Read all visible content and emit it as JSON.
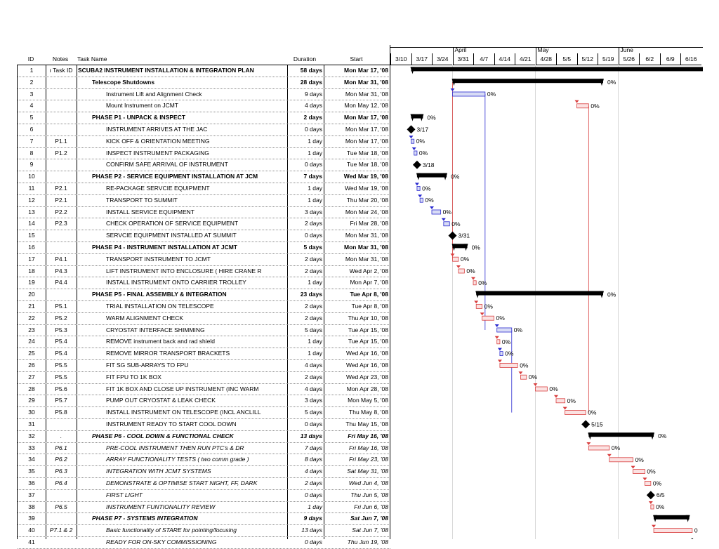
{
  "table": {
    "headers": {
      "id": "ID",
      "notes": "Notes",
      "name": "Task Name",
      "duration": "Duration",
      "start": "Start"
    },
    "rows": [
      {
        "id": "1",
        "notes": "ı Task ID",
        "name": "SCUBA2 INSTRUMENT INSTALLATION &  INTEGRATION PLAN",
        "duration": "58 days",
        "start": "Mon Mar 17, '08",
        "style": "summary",
        "indent": 0,
        "bar": {
          "type": "summary",
          "s": 7,
          "e": 106.9
        },
        "label": ""
      },
      {
        "id": "2",
        "notes": "",
        "name": "Telescope Shutdowns",
        "duration": "28 days",
        "start": "Mon Mar 31, '08",
        "style": "summary",
        "indent": 1,
        "bar": {
          "type": "summary",
          "s": 21,
          "e": 71.9
        },
        "label": "0%"
      },
      {
        "id": "3",
        "notes": "",
        "name": "Instrument Lift and Alignment Check",
        "duration": "9 days",
        "start": "Mon Mar 31, '08",
        "style": "normal",
        "indent": 2,
        "bar": {
          "type": "task",
          "s": 21,
          "e": 32,
          "color": "blue"
        },
        "label": "0%"
      },
      {
        "id": "4",
        "notes": "",
        "name": "Mount Instrument on JCMT",
        "duration": "4 days",
        "start": "Mon May 12, '08",
        "style": "normal",
        "indent": 2,
        "bar": {
          "type": "task",
          "s": 63,
          "e": 67,
          "color": "red"
        },
        "label": "0%"
      },
      {
        "id": "5",
        "notes": "",
        "name": "PHASE P1 - UNPACK & INSPECT",
        "duration": "2 days",
        "start": "Mon Mar 17, '08",
        "style": "summary",
        "indent": 1,
        "bar": {
          "type": "summary",
          "s": 7,
          "e": 11
        },
        "label": "0%"
      },
      {
        "id": "6",
        "notes": "",
        "name": "INSTRUMENT ARRIVES AT THE JAC",
        "duration": "0 days",
        "start": "Mon Mar 17, '08",
        "style": "normal",
        "indent": 2,
        "bar": {
          "type": "milestone",
          "s": 7
        },
        "label": "3/17"
      },
      {
        "id": "7",
        "notes": "P1.1",
        "name": "KICK OFF & ORIENTATION MEETING",
        "duration": "1 day",
        "start": "Mon Mar 17, '08",
        "style": "normal",
        "indent": 2,
        "bar": {
          "type": "task",
          "s": 7,
          "e": 8,
          "color": "blue"
        },
        "label": "0%"
      },
      {
        "id": "8",
        "notes": "P1.2",
        "name": " INSPECT INSTRUMENT PACKAGING",
        "duration": "1 day",
        "start": "Tue Mar 18, '08",
        "style": "normal",
        "indent": 2,
        "bar": {
          "type": "task",
          "s": 8,
          "e": 9,
          "color": "blue"
        },
        "label": "0%"
      },
      {
        "id": "9",
        "notes": "",
        "name": "CONFIRM SAFE ARRIVAL OF INSTRUMENT",
        "duration": "0 days",
        "start": "Tue Mar 18, '08",
        "style": "normal",
        "indent": 2,
        "bar": {
          "type": "milestone",
          "s": 9
        },
        "label": "3/18"
      },
      {
        "id": "10",
        "notes": "",
        "name": "PHASE P2 - SERVICE EQUIPMENT INSTALLATION AT JCM",
        "duration": "7 days",
        "start": "Wed Mar 19, '08",
        "style": "summary",
        "indent": 1,
        "bar": {
          "type": "summary",
          "s": 9,
          "e": 19
        },
        "label": "0%"
      },
      {
        "id": "11",
        "notes": "P2.1",
        "name": "RE-PACKAGE SERVCIE EQUIPMENT",
        "duration": "1 day",
        "start": "Wed Mar 19, '08",
        "style": "normal",
        "indent": 2,
        "bar": {
          "type": "task",
          "s": 9,
          "e": 10,
          "color": "blue"
        },
        "label": "0%"
      },
      {
        "id": "12",
        "notes": "P2.1",
        "name": "TRANSPORT TO SUMMIT",
        "duration": "1 day",
        "start": "Thu Mar 20, '08",
        "style": "normal",
        "indent": 2,
        "bar": {
          "type": "task",
          "s": 10,
          "e": 11,
          "color": "blue"
        },
        "label": "0%"
      },
      {
        "id": "13",
        "notes": "P2.2",
        "name": "INSTALL SERVICE EQUIPMENT",
        "duration": "3 days",
        "start": "Mon Mar 24, '08",
        "style": "normal",
        "indent": 2,
        "bar": {
          "type": "task",
          "s": 14,
          "e": 17,
          "color": "blue"
        },
        "label": "0%"
      },
      {
        "id": "14",
        "notes": "P2.3",
        "name": "CHECK OPERATION OF SERVICE EQUIPMENT",
        "duration": "2 days",
        "start": "Fri Mar 28, '08",
        "style": "normal",
        "indent": 2,
        "bar": {
          "type": "task",
          "s": 18,
          "e": 20,
          "color": "blue"
        },
        "label": "0%"
      },
      {
        "id": "15",
        "notes": "",
        "name": "SERVCIE EQUIPMENT INSTALLED AT SUMMIT",
        "duration": "0 days",
        "start": "Mon Mar 31, '08",
        "style": "normal",
        "indent": 2,
        "bar": {
          "type": "milestone",
          "s": 21
        },
        "label": "3/31"
      },
      {
        "id": "16",
        "notes": "",
        "name": "PHASE P4 - INSTRUMENT INSTALLATION AT JCMT",
        "duration": "5 days",
        "start": "Mon Mar 31, '08",
        "style": "summary",
        "indent": 1,
        "bar": {
          "type": "summary",
          "s": 21,
          "e": 26
        },
        "label": "0%"
      },
      {
        "id": "17",
        "notes": "P4.1",
        "name": "TRANSPORT INSTRUMENT TO JCMT",
        "duration": "2 days",
        "start": "Mon Mar 31, '08",
        "style": "normal",
        "indent": 2,
        "bar": {
          "type": "task",
          "s": 21,
          "e": 23,
          "color": "red"
        },
        "label": "0%"
      },
      {
        "id": "18",
        "notes": "P4.3",
        "name": "LIFT INSTRUMENT INTO ENCLOSURE ( HIRE CRANE R",
        "duration": "2 days",
        "start": "Wed Apr 2, '08",
        "style": "normal",
        "indent": 2,
        "bar": {
          "type": "task",
          "s": 23,
          "e": 25,
          "color": "red"
        },
        "label": "0%"
      },
      {
        "id": "19",
        "notes": "P4.4",
        "name": "INSTALL INSTRUMENT ONTO CARRIER TROLLEY",
        "duration": "1 day",
        "start": "Mon Apr 7, '08",
        "style": "normal",
        "indent": 2,
        "bar": {
          "type": "task",
          "s": 28,
          "e": 29,
          "color": "red"
        },
        "label": "0%"
      },
      {
        "id": "20",
        "notes": "",
        "name": "PHASE P5 - FINAL ASSEMBLY & INTEGRATION",
        "duration": "23 days",
        "start": "Tue Apr 8, '08",
        "style": "summary",
        "indent": 1,
        "bar": {
          "type": "summary",
          "s": 29,
          "e": 71.9
        },
        "label": "0%"
      },
      {
        "id": "21",
        "notes": "P5.1",
        "name": "TRIAL INSTALLATION ON TELESCOPE",
        "duration": "2 days",
        "start": "Tue Apr 8, '08",
        "style": "normal",
        "indent": 2,
        "bar": {
          "type": "task",
          "s": 29,
          "e": 31,
          "color": "red"
        },
        "label": "0%"
      },
      {
        "id": "22",
        "notes": "P5.2",
        "name": "WARM ALIGNMENT CHECK",
        "duration": "2 days",
        "start": "Thu Apr 10, '08",
        "style": "normal",
        "indent": 2,
        "bar": {
          "type": "task",
          "s": 31,
          "e": 35,
          "color": "red"
        },
        "label": "0%"
      },
      {
        "id": "23",
        "notes": "P5.3",
        "name": "CRYOSTAT INTERFACE SHIMMING",
        "duration": "5 days",
        "start": "Tue Apr 15, '08",
        "style": "normal",
        "indent": 2,
        "bar": {
          "type": "task",
          "s": 36,
          "e": 41,
          "color": "blue"
        },
        "label": "0%"
      },
      {
        "id": "24",
        "notes": "P5.4",
        "name": "REMOVE instrument back and rad shield",
        "duration": "1 day",
        "start": "Tue Apr 15, '08",
        "style": "normal",
        "indent": 2,
        "bar": {
          "type": "task",
          "s": 36,
          "e": 37,
          "color": "red"
        },
        "label": "0%"
      },
      {
        "id": "25",
        "notes": "P5.4",
        "name": "REMOVE MIRROR TRANSPORT BRACKETS",
        "duration": "1 day",
        "start": "Wed Apr 16, '08",
        "style": "normal",
        "indent": 2,
        "bar": {
          "type": "task",
          "s": 37,
          "e": 38,
          "color": "blue"
        },
        "label": "0%"
      },
      {
        "id": "26",
        "notes": "P5.5",
        "name": "FIT SG SUB-ARRAYS TO FPU",
        "duration": "4 days",
        "start": "Wed Apr 16, '08",
        "style": "normal",
        "indent": 2,
        "bar": {
          "type": "task",
          "s": 37,
          "e": 43,
          "color": "red"
        },
        "label": "0%"
      },
      {
        "id": "27",
        "notes": "P5.5",
        "name": "FIT FPU TO 1K BOX",
        "duration": "2 days",
        "start": "Wed Apr 23, '08",
        "style": "normal",
        "indent": 2,
        "bar": {
          "type": "task",
          "s": 44,
          "e": 46,
          "color": "red"
        },
        "label": "0%"
      },
      {
        "id": "28",
        "notes": "P5.6",
        "name": "FIT 1K BOX AND CLOSE UP INSTRUMENT (INC WARM",
        "duration": "4 days",
        "start": "Mon Apr 28, '08",
        "style": "normal",
        "indent": 2,
        "bar": {
          "type": "task",
          "s": 49,
          "e": 53,
          "color": "red"
        },
        "label": "0%"
      },
      {
        "id": "29",
        "notes": "P5.7",
        "name": "PUMP OUT CRYOSTAT & LEAK CHECK",
        "duration": "3 days",
        "start": "Mon May 5, '08",
        "style": "normal",
        "indent": 2,
        "bar": {
          "type": "task",
          "s": 56,
          "e": 59,
          "color": "red"
        },
        "label": "0%"
      },
      {
        "id": "30",
        "notes": "P5.8",
        "name": "INSTALL INSTRUMENT ON TELESCOPE (INCL ANCLILL",
        "duration": "5 days",
        "start": "Thu May 8, '08",
        "style": "normal",
        "indent": 2,
        "bar": {
          "type": "task",
          "s": 59,
          "e": 66,
          "color": "red"
        },
        "label": "0%"
      },
      {
        "id": "31",
        "notes": "",
        "name": "INSTRUMENT READY TO START COOL DOWN",
        "duration": "0 days",
        "start": "Thu May 15, '08",
        "style": "normal",
        "indent": 2,
        "bar": {
          "type": "milestone",
          "s": 66
        },
        "label": "5/15"
      },
      {
        "id": "32",
        "notes": ".",
        "name": "PHASE P6 - COOL DOWN & FUNCTIONAL CHECK",
        "duration": "13 days",
        "start": "Fri May 16, '08",
        "style": "summary italic",
        "indent": 1,
        "bar": {
          "type": "summary",
          "s": 67,
          "e": 89
        },
        "label": "0%"
      },
      {
        "id": "33",
        "notes": "P6.1",
        "name": "PRE-COOL INSTRUMENT THEN RUN PTC's & DR",
        "duration": "7 days",
        "start": "Fri May 16, '08",
        "style": "italic",
        "indent": 2,
        "bar": {
          "type": "task",
          "s": 67,
          "e": 74,
          "color": "red"
        },
        "label": "0%"
      },
      {
        "id": "34",
        "notes": "P6.2",
        "name": "ARRAY FUNCTIONALITY TESTS ( two comm grade )",
        "duration": "8 days",
        "start": "Fri May 23, '08",
        "style": "italic",
        "indent": 2,
        "bar": {
          "type": "task",
          "s": 74,
          "e": 82,
          "color": "red"
        },
        "label": "0%"
      },
      {
        "id": "35",
        "notes": "P6.3",
        "name": "INTEGRATION WITH JCMT SYSTEMS",
        "duration": "4 days",
        "start": "Sat May 31, '08",
        "style": "italic",
        "indent": 2,
        "bar": {
          "type": "task",
          "s": 82,
          "e": 86,
          "color": "red"
        },
        "label": "0%"
      },
      {
        "id": "36",
        "notes": "P6.4",
        "name": "DEMONSTRATE & OPTIMISE START NIGHT, FF, DARK",
        "duration": "2 days",
        "start": "Wed Jun 4, '08",
        "style": "italic",
        "indent": 2,
        "bar": {
          "type": "task",
          "s": 86,
          "e": 88,
          "color": "red"
        },
        "label": "0%"
      },
      {
        "id": "37",
        "notes": "",
        "name": "FIRST LIGHT",
        "duration": "0 days",
        "start": "Thu Jun 5, '08",
        "style": "italic",
        "indent": 2,
        "bar": {
          "type": "milestone",
          "s": 88
        },
        "label": "6/5"
      },
      {
        "id": "38",
        "notes": "P6.5",
        "name": "INSTRUMENT FUNTIONALITY REVIEW",
        "duration": "1 day",
        "start": "Fri Jun 6, '08",
        "style": "italic",
        "indent": 2,
        "bar": {
          "type": "task",
          "s": 88,
          "e": 89,
          "color": "red"
        },
        "label": "0%"
      },
      {
        "id": "39",
        "notes": "",
        "name": "PHASE P7 - SYSTEMS INTEGRATION",
        "duration": "9 days",
        "start": "Sat Jun 7, '08",
        "style": "summary italic",
        "indent": 1,
        "bar": {
          "type": "summary",
          "s": 89,
          "e": 101
        },
        "label": ""
      },
      {
        "id": "40",
        "notes": "P7.1 & 2",
        "name": "Basic functionality of STARE for pointing/focusing",
        "duration": "13 days",
        "start": "Sat Jun 7, '08",
        "style": "italic",
        "indent": 2,
        "bar": {
          "type": "task",
          "s": 89,
          "e": 102,
          "color": "red"
        },
        "label": "0"
      },
      {
        "id": "41",
        "notes": "",
        "name": "READY FOR ON-SKY COMMISSIONING",
        "duration": "0 days",
        "start": "Thu Jun 19, '08",
        "style": "italic",
        "indent": 2,
        "bar": {
          "type": "milestone",
          "s": 102
        },
        "label": ""
      }
    ]
  },
  "timeline": {
    "months": [
      {
        "label": "April",
        "start": 21
      },
      {
        "label": "May",
        "start": 49
      },
      {
        "label": "June",
        "start": 77
      }
    ],
    "weeks": [
      "3/10",
      "3/17",
      "3/24",
      "3/31",
      "4/7",
      "4/14",
      "4/21",
      "4/28",
      "5/5",
      "5/12",
      "5/19",
      "5/26",
      "6/2",
      "6/9",
      "6/16"
    ],
    "colors": {
      "summary": "#000000",
      "blue_fill": "#d8dcf5",
      "blue_edge": "#2a2ad0",
      "red_fill": "#fbe2e2",
      "red_edge": "#d94040",
      "link_blue": "#2a2ad0",
      "link_red": "#d94040"
    },
    "links": [
      {
        "from": 3,
        "to": 23,
        "color": "blue"
      },
      {
        "from": 4,
        "to": 30,
        "color": "red"
      },
      {
        "from": 2,
        "to": 17,
        "color": "red"
      },
      {
        "from": 23,
        "to": 30,
        "color": "blue"
      }
    ]
  }
}
